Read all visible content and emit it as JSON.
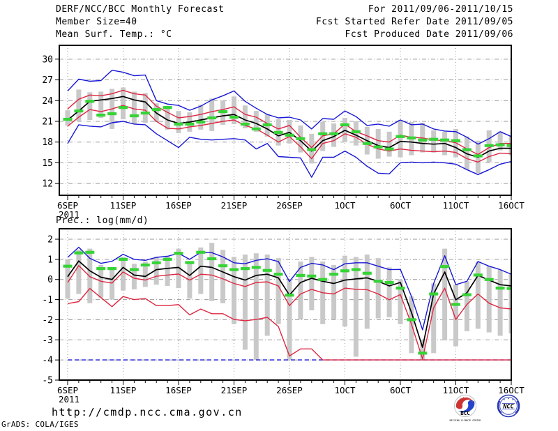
{
  "header": {
    "title": "DERF/NCC/BCC Monthly Forecast",
    "member_size": "Member Size=40",
    "variable": "Mean Surf. Temp.: °C",
    "for_range": "For 2011/09/06-2011/10/15",
    "fcst_started": "Fcst Started Refer Date 2011/09/05",
    "fcst_produced": "Fcst Produced Date 2011/09/06"
  },
  "footer": {
    "url": "http://cmdp.ncc.cma.gov.cn",
    "credit": "GrADS: COLA/IGES",
    "logos": [
      {
        "label": "BCC",
        "caption": "BEIJING CLIMATE CENTER",
        "accent_red": "#cc3333",
        "accent_blue": "#2244cc",
        "text_color": "#1a2a7a"
      },
      {
        "label": "NCC",
        "color": "#2736b8"
      }
    ]
  },
  "colors": {
    "blue": "#1717d6",
    "red": "#de2742",
    "black": "#000000",
    "green": "#35d435",
    "bar": "#c9c9c9",
    "grid": "#9a9a9a",
    "frame": "#000000"
  },
  "chart_data": [
    {
      "name": "mean-surface-temperature",
      "type": "line",
      "title": "Mean Surf. Temp.: °C",
      "grid": true,
      "legend": "none",
      "ylim": [
        10.3,
        32.0
      ],
      "y_ticks": [
        30,
        27,
        24,
        21,
        18,
        15,
        12
      ],
      "n_days": 41,
      "x_ticks": [
        {
          "day": 0,
          "label": "6SEP"
        },
        {
          "day": 5,
          "label": "11SEP"
        },
        {
          "day": 10,
          "label": "16SEP"
        },
        {
          "day": 15,
          "label": "21SEP"
        },
        {
          "day": 20,
          "label": "26SEP"
        },
        {
          "day": 25,
          "label": "1OCT"
        },
        {
          "day": 30,
          "label": "6OCT"
        },
        {
          "day": 35,
          "label": "11OCT"
        },
        {
          "day": 40,
          "label": "16OCT"
        }
      ],
      "x_sub_label": "2011",
      "series": [
        {
          "name": "envelope-max",
          "color": "blue",
          "values": [
            25.4,
            27.1,
            26.8,
            26.9,
            28.4,
            28.1,
            27.6,
            27.7,
            24.0,
            23.5,
            23.3,
            22.6,
            23.2,
            24.1,
            24.7,
            25.4,
            23.9,
            22.9,
            22.0,
            21.5,
            21.6,
            21.2,
            19.9,
            21.4,
            21.3,
            22.5,
            21.7,
            20.4,
            20.6,
            20.3,
            21.2,
            20.5,
            20.6,
            19.9,
            19.6,
            19.5,
            18.7,
            17.7,
            18.5,
            19.5,
            18.8
          ]
        },
        {
          "name": "plus-sigma",
          "color": "red",
          "values": [
            22.8,
            24.2,
            24.8,
            24.7,
            25.0,
            25.5,
            25.0,
            24.8,
            23.2,
            22.3,
            21.5,
            21.7,
            22.0,
            22.4,
            22.7,
            23.1,
            22.0,
            21.6,
            20.7,
            19.9,
            20.4,
            18.7,
            17.2,
            18.9,
            19.2,
            20.6,
            19.5,
            18.9,
            18.2,
            18.0,
            19.0,
            18.7,
            18.6,
            18.3,
            18.2,
            17.9,
            17.0,
            16.2,
            17.2,
            17.8,
            17.8
          ]
        },
        {
          "name": "ensemble-mean",
          "color": "black",
          "values": [
            21.2,
            22.5,
            23.9,
            24.1,
            24.3,
            24.6,
            24.1,
            23.8,
            22.2,
            21.2,
            20.7,
            20.9,
            21.2,
            21.5,
            21.8,
            22.0,
            21.2,
            20.7,
            19.9,
            18.9,
            19.4,
            18.2,
            16.7,
            18.2,
            18.8,
            19.7,
            19.0,
            18.2,
            17.5,
            17.2,
            18.1,
            18.0,
            17.8,
            17.7,
            17.8,
            17.2,
            16.3,
            15.8,
            16.7,
            17.1,
            17.1
          ]
        },
        {
          "name": "minus-sigma",
          "color": "red",
          "values": [
            20.3,
            21.6,
            22.7,
            22.4,
            22.8,
            23.3,
            22.8,
            22.6,
            21.0,
            20.0,
            19.9,
            20.2,
            20.4,
            20.7,
            21.0,
            21.2,
            20.4,
            19.9,
            19.0,
            18.0,
            18.8,
            17.3,
            15.6,
            17.8,
            18.2,
            19.2,
            18.7,
            17.7,
            17.0,
            16.7,
            17.0,
            16.8,
            16.7,
            16.6,
            16.7,
            16.5,
            15.6,
            15.1,
            15.9,
            16.4,
            16.3
          ]
        },
        {
          "name": "envelope-min",
          "color": "blue",
          "values": [
            17.8,
            20.5,
            20.3,
            20.2,
            20.8,
            21.0,
            20.6,
            20.5,
            19.2,
            18.2,
            17.2,
            18.7,
            18.4,
            18.3,
            18.4,
            18.5,
            18.3,
            17.0,
            17.8,
            15.9,
            15.8,
            15.7,
            12.9,
            15.8,
            15.8,
            16.7,
            15.8,
            14.5,
            13.5,
            13.4,
            15.0,
            15.1,
            15.0,
            15.1,
            15.0,
            14.8,
            14.0,
            13.3,
            14.0,
            14.8,
            15.2
          ]
        },
        {
          "name": "climatology-dashes",
          "color": "green",
          "style": "dash-marks",
          "values": [
            21.3,
            22.5,
            23.9,
            21.9,
            22.1,
            23.0,
            21.8,
            22.2,
            22.7,
            23.0,
            20.6,
            20.6,
            20.9,
            21.5,
            22.4,
            21.6,
            20.6,
            19.9,
            20.5,
            19.4,
            19.0,
            18.5,
            16.9,
            19.2,
            19.2,
            20.5,
            19.5,
            17.8,
            17.3,
            17.0,
            18.8,
            18.6,
            18.3,
            18.4,
            18.3,
            18.2,
            16.9,
            16.0,
            17.5,
            17.6,
            17.5
          ]
        }
      ],
      "bars": {
        "name": "ensemble-spread",
        "low": [
          20.4,
          21.0,
          21.2,
          21.5,
          19.9,
          21.3,
          20.6,
          20.8,
          20.9,
          19.8,
          19.3,
          19.5,
          19.8,
          19.6,
          20.5,
          20.6,
          20.0,
          19.5,
          18.8,
          17.5,
          17.8,
          16.5,
          14.9,
          16.7,
          17.3,
          18.0,
          17.5,
          16.2,
          15.6,
          15.9,
          15.8,
          16.1,
          16.5,
          16.5,
          16.1,
          15.8,
          14.0,
          13.5,
          15.1,
          16.8,
          16.1
        ],
        "high": [
          22.6,
          25.6,
          25.2,
          25.3,
          25.7,
          25.9,
          25.3,
          25.1,
          23.6,
          23.2,
          22.5,
          22.3,
          23.4,
          24.3,
          24.0,
          24.6,
          23.3,
          22.5,
          22.0,
          21.3,
          21.2,
          20.4,
          19.2,
          20.9,
          20.7,
          21.5,
          21.0,
          20.2,
          19.9,
          19.5,
          21.2,
          20.9,
          20.8,
          19.7,
          19.5,
          19.9,
          18.8,
          18.2,
          19.7,
          19.5,
          18.8
        ]
      }
    },
    {
      "name": "precipitation",
      "type": "line",
      "title": "Prec.: log(mm/d)",
      "grid": true,
      "legend": "none",
      "ylim": [
        -5.0,
        2.52
      ],
      "y_ticks": [
        2,
        1,
        0,
        -1,
        -2,
        -3,
        -4,
        -5
      ],
      "n_days": 41,
      "x_ticks": [
        {
          "day": 0,
          "label": "6SEP"
        },
        {
          "day": 5,
          "label": "11SEP"
        },
        {
          "day": 10,
          "label": "16SEP"
        },
        {
          "day": 15,
          "label": "21SEP"
        },
        {
          "day": 20,
          "label": "26SEP"
        },
        {
          "day": 25,
          "label": "1OCT"
        },
        {
          "day": 30,
          "label": "6OCT"
        },
        {
          "day": 35,
          "label": "11OCT"
        },
        {
          "day": 40,
          "label": "16OCT"
        }
      ],
      "x_sub_label": "2011",
      "series": [
        {
          "name": "envelope-max",
          "color": "blue",
          "values": [
            1.1,
            1.6,
            1.05,
            0.8,
            0.9,
            1.25,
            1.0,
            0.95,
            1.1,
            1.15,
            1.3,
            1.0,
            1.35,
            1.33,
            1.12,
            0.83,
            0.78,
            0.95,
            1.03,
            0.89,
            -0.1,
            0.6,
            0.8,
            0.72,
            0.49,
            0.78,
            0.83,
            0.83,
            0.66,
            0.49,
            0.5,
            -0.84,
            -2.5,
            -0.2,
            1.18,
            -0.26,
            -0.09,
            0.89,
            0.66,
            0.49,
            0.26
          ]
        },
        {
          "name": "ensemble-mean",
          "color": "black",
          "values": [
            0.14,
            0.92,
            0.43,
            0.11,
            0.0,
            0.6,
            0.22,
            0.15,
            0.49,
            0.55,
            0.6,
            0.2,
            0.66,
            0.6,
            0.37,
            0.14,
            -0.03,
            0.2,
            0.26,
            0.08,
            -0.78,
            -0.15,
            0.06,
            -0.09,
            -0.2,
            -0.03,
            0.03,
            0.08,
            -0.09,
            -0.32,
            -0.15,
            -1.64,
            -3.37,
            -0.72,
            0.37,
            -1.01,
            -0.66,
            0.2,
            -0.03,
            -0.26,
            -0.32
          ]
        },
        {
          "name": "plus-sigma",
          "color": "red",
          "values": [
            -0.15,
            0.69,
            0.14,
            -0.09,
            -0.18,
            0.37,
            0.06,
            -0.03,
            0.16,
            0.22,
            0.27,
            -0.03,
            0.26,
            0.22,
            0.03,
            -0.2,
            -0.35,
            -0.15,
            -0.12,
            -0.32,
            -1.3,
            -0.72,
            -0.49,
            -0.66,
            -0.72,
            -0.43,
            -0.49,
            -0.51,
            -0.72,
            -1.01,
            -0.75,
            -2.22,
            -3.95,
            -1.41,
            -0.43,
            -1.99,
            -1.24,
            -0.72,
            -1.18,
            -1.41,
            -1.47
          ]
        },
        {
          "name": "envelope-min-floor",
          "color": "blue",
          "dash": "6 4",
          "values": [
            -4,
            -4,
            -4,
            -4,
            -4,
            -4,
            -4,
            -4,
            -4,
            -4,
            -4,
            -4,
            -4,
            -4,
            -4,
            -4,
            -4,
            -4,
            -4,
            -4,
            -4,
            -4,
            -4,
            -4,
            -4,
            -4,
            -4,
            -4,
            -4,
            -4,
            -4,
            -4,
            -4,
            -4,
            -4,
            -4,
            -4,
            -4,
            -4,
            -4,
            -4
          ]
        },
        {
          "name": "minus-sigma",
          "color": "red",
          "values": [
            -1.2,
            -1.1,
            -0.45,
            -0.9,
            -1.35,
            -0.85,
            -1.0,
            -0.95,
            -1.3,
            -1.3,
            -1.25,
            -1.76,
            -1.47,
            -1.7,
            -1.7,
            -1.99,
            -2.05,
            -1.99,
            -1.88,
            -2.34,
            -3.8,
            -3.45,
            -3.45,
            -4,
            -4,
            -4,
            -4,
            -4,
            -4,
            -4,
            -4,
            -4,
            -4,
            -4,
            -4,
            -4,
            -4,
            -4,
            -4,
            -4,
            -4
          ]
        },
        {
          "name": "climatology-dashes",
          "color": "green",
          "style": "dash-marks",
          "values": [
            0.66,
            1.32,
            1.35,
            0.54,
            0.54,
            1.0,
            0.49,
            0.72,
            0.83,
            1.0,
            1.3,
            0.84,
            1.35,
            1.03,
            0.68,
            0.49,
            0.54,
            0.6,
            0.45,
            0.26,
            -0.78,
            0.2,
            0.17,
            0.0,
            0.26,
            0.43,
            0.49,
            0.31,
            -0.09,
            -0.15,
            -0.43,
            -2.0,
            -3.66,
            -0.72,
            0.64,
            -1.24,
            -0.76,
            0.22,
            0.0,
            -0.43,
            -0.45
          ]
        }
      ],
      "bars": {
        "name": "ensemble-spread",
        "low": [
          -0.95,
          -0.72,
          -1.18,
          -0.9,
          -1.0,
          -0.55,
          -0.49,
          -0.37,
          -0.26,
          -0.32,
          -0.43,
          -0.95,
          -0.72,
          -1.07,
          -1.18,
          -2.22,
          -3.49,
          -4.0,
          -2.8,
          -2.22,
          -4.0,
          -1.99,
          -1.53,
          -2.22,
          -1.99,
          -2.34,
          -3.84,
          -2.45,
          -1.93,
          -1.88,
          -2.22,
          -3.66,
          -4.0,
          -3.66,
          -3.03,
          -3.32,
          -2.57,
          -2.45,
          -2.63,
          -2.8,
          -2.68
        ],
        "high": [
          1.0,
          1.47,
          1.53,
          0.72,
          0.6,
          1.12,
          0.78,
          0.89,
          1.12,
          1.18,
          1.53,
          0.89,
          1.59,
          1.82,
          1.47,
          1.12,
          1.24,
          1.3,
          1.24,
          1.06,
          -0.03,
          0.89,
          1.12,
          0.89,
          0.72,
          1.18,
          1.12,
          1.24,
          1.06,
          0.6,
          0.0,
          -0.84,
          -3.0,
          -0.2,
          1.53,
          -0.26,
          -0.09,
          0.89,
          0.66,
          0.49,
          0.26
        ]
      }
    }
  ]
}
